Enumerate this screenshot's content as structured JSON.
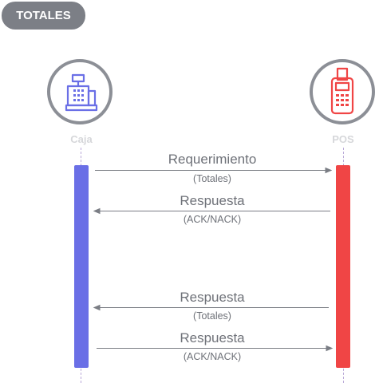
{
  "badge": {
    "label": "TOTALES"
  },
  "actors": {
    "left": {
      "label": "Caja",
      "icon": "cash-register-icon",
      "color": "#6a6fe6"
    },
    "right": {
      "label": "POS",
      "icon": "pos-terminal-icon",
      "color": "#f04545"
    }
  },
  "messages": [
    {
      "title": "Requerimiento",
      "subtitle": "(Totales)",
      "direction": "right"
    },
    {
      "title": "Respuesta",
      "subtitle": "(ACK/NACK)",
      "direction": "left"
    },
    {
      "title": "Respuesta",
      "subtitle": "(Totales)",
      "direction": "left"
    },
    {
      "title": "Respuesta",
      "subtitle": "(ACK/NACK)",
      "direction": "right"
    }
  ]
}
